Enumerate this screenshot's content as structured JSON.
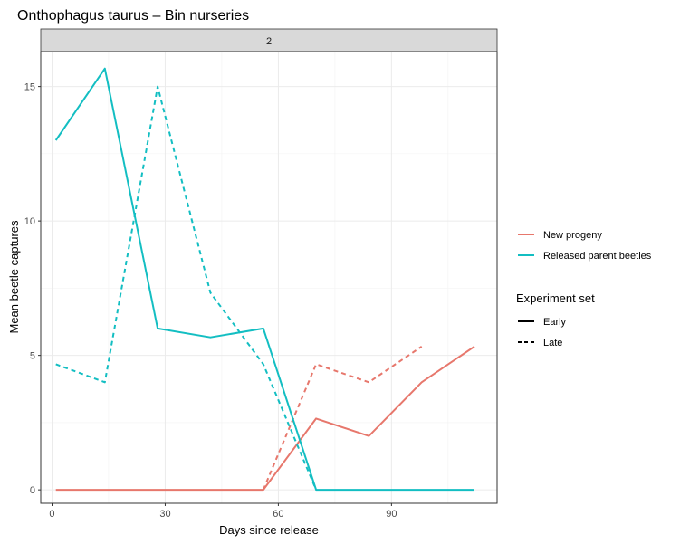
{
  "chart_data": {
    "type": "line",
    "title": "Onthophagus taurus – Bin nurseries",
    "facet_label": "2",
    "xlabel": "Days since release",
    "ylabel": "Mean  beetle captures",
    "xlim": [
      -3,
      118
    ],
    "ylim": [
      -0.5,
      16.3
    ],
    "x_ticks": [
      0,
      30,
      60,
      90
    ],
    "y_ticks": [
      0,
      5,
      10,
      15
    ],
    "grid": true,
    "legend_position": "right",
    "colors": {
      "New progeny": "#E7776C",
      "Released parent beetles": "#13BEC2"
    },
    "legend_color": {
      "title": "",
      "entries": [
        {
          "name": "New progeny",
          "color": "#E7776C"
        },
        {
          "name": "Released parent beetles",
          "color": "#13BEC2"
        }
      ]
    },
    "legend_linetype": {
      "title": "Experiment set",
      "entries": [
        {
          "name": "Early",
          "dash": "solid"
        },
        {
          "name": "Late",
          "dash": "dashed"
        }
      ]
    },
    "series": [
      {
        "group": "New progeny",
        "set": "Early",
        "color": "#E7776C",
        "dash": "solid",
        "x": [
          1,
          14,
          28,
          42,
          56,
          70,
          84,
          98,
          112
        ],
        "y": [
          0,
          0,
          0,
          0,
          0,
          2.65,
          2.0,
          4.0,
          5.33
        ]
      },
      {
        "group": "New progeny",
        "set": "Late",
        "color": "#E7776C",
        "dash": "dashed",
        "x": [
          56,
          70,
          84,
          98
        ],
        "y": [
          0,
          4.67,
          4.0,
          5.33
        ]
      },
      {
        "group": "Released parent beetles",
        "set": "Early",
        "color": "#13BEC2",
        "dash": "solid",
        "x": [
          1,
          14,
          28,
          42,
          56,
          70,
          84,
          98,
          112
        ],
        "y": [
          13.0,
          15.67,
          6.0,
          5.67,
          6.0,
          0,
          0,
          0,
          0
        ]
      },
      {
        "group": "Released parent beetles",
        "set": "Late",
        "color": "#13BEC2",
        "dash": "dashed",
        "x": [
          1,
          14,
          28,
          42,
          56,
          70
        ],
        "y": [
          4.67,
          4.0,
          15.0,
          7.33,
          4.67,
          0
        ]
      }
    ]
  }
}
